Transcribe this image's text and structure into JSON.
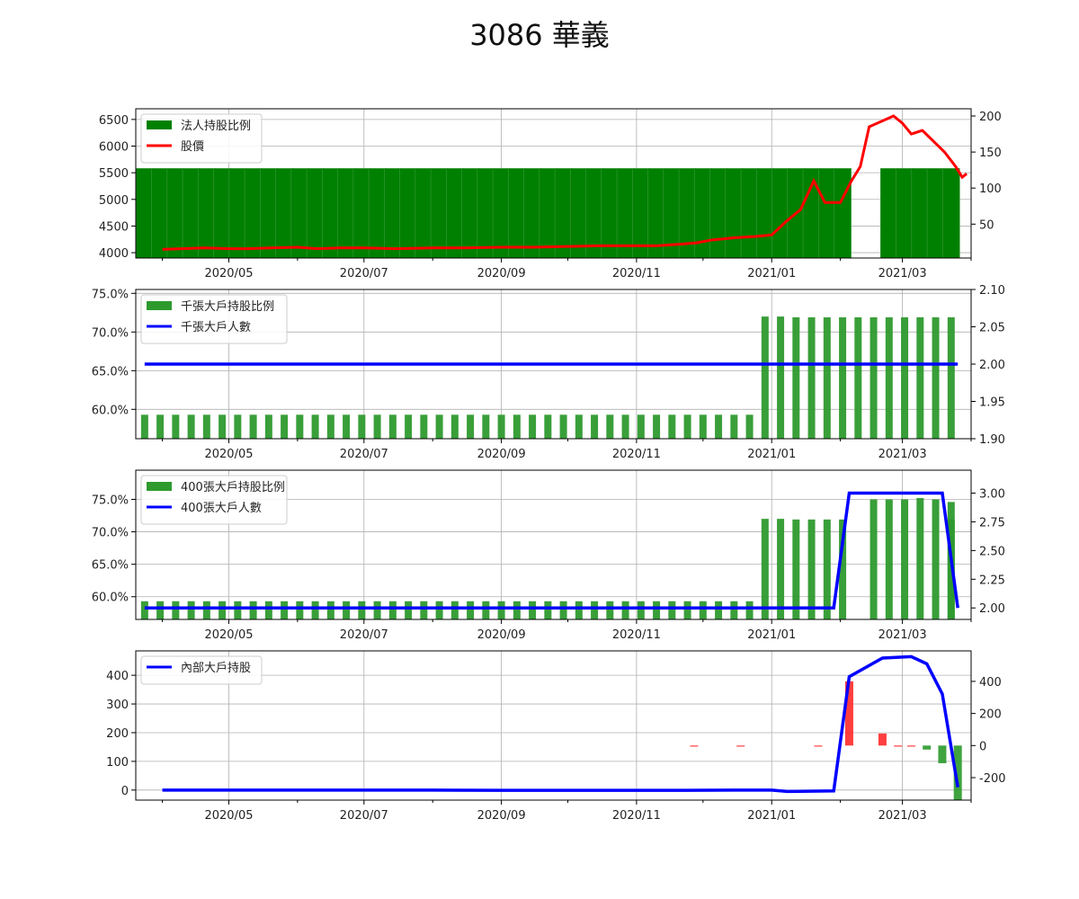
{
  "title": "3086 華義",
  "colors": {
    "bar_green": "#008000",
    "price_red": "#ff0000",
    "count_blue": "#0000ff",
    "neg_red": "#ff2a2a",
    "pos_green": "#2a9a2a"
  },
  "chart_data": [
    {
      "type": "bar",
      "legend": [
        "法人持股比例",
        "股價"
      ],
      "legend_position": "top-left",
      "grid": true,
      "x_range": [
        "2020-03-20",
        "2021-04-01"
      ],
      "x_ticks": [
        "2020/05",
        "2020/07",
        "2020/09",
        "2020/11",
        "2021/01",
        "2021/03"
      ],
      "ylim_left": [
        3900,
        6700
      ],
      "yticks_left": [
        "4000",
        "4500",
        "5000",
        "5500",
        "6000",
        "6500"
      ],
      "ylim_right": [
        3,
        210
      ],
      "yticks_right": [
        "50",
        "100",
        "150",
        "200"
      ],
      "bar_series": {
        "name": "法人持股比例",
        "value": 5580,
        "gaps": [
          [
            "2020-06-26",
            "2020-06-29"
          ],
          [
            "2020-09-30",
            "2020-10-05"
          ],
          [
            "2021-02-09",
            "2021-02-16"
          ]
        ],
        "start": "2020-03-24",
        "end": "2021-03-26"
      },
      "line_series": {
        "name": "股價",
        "points": [
          [
            "2020-04-01",
            15
          ],
          [
            "2020-04-10",
            16
          ],
          [
            "2020-04-20",
            17
          ],
          [
            "2020-05-01",
            16
          ],
          [
            "2020-05-10",
            16
          ],
          [
            "2020-05-20",
            17
          ],
          [
            "2020-06-01",
            18
          ],
          [
            "2020-06-10",
            16
          ],
          [
            "2020-06-20",
            17
          ],
          [
            "2020-07-01",
            17
          ],
          [
            "2020-07-15",
            16
          ],
          [
            "2020-08-01",
            17
          ],
          [
            "2020-08-15",
            17
          ],
          [
            "2020-09-01",
            18
          ],
          [
            "2020-09-15",
            18
          ],
          [
            "2020-10-01",
            19
          ],
          [
            "2020-10-15",
            20
          ],
          [
            "2020-11-01",
            20
          ],
          [
            "2020-11-10",
            20
          ],
          [
            "2020-11-20",
            22
          ],
          [
            "2020-11-28",
            24
          ],
          [
            "2020-12-05",
            28
          ],
          [
            "2020-12-15",
            31
          ],
          [
            "2020-12-25",
            33
          ],
          [
            "2021-01-01",
            35
          ],
          [
            "2021-01-08",
            55
          ],
          [
            "2021-01-14",
            70
          ],
          [
            "2021-01-20",
            110
          ],
          [
            "2021-01-25",
            80
          ],
          [
            "2021-02-01",
            80
          ],
          [
            "2021-02-06",
            110
          ],
          [
            "2021-02-10",
            130
          ],
          [
            "2021-02-14",
            185
          ],
          [
            "2021-02-25",
            200
          ],
          [
            "2021-03-01",
            190
          ],
          [
            "2021-03-05",
            175
          ],
          [
            "2021-03-10",
            180
          ],
          [
            "2021-03-15",
            165
          ],
          [
            "2021-03-20",
            150
          ],
          [
            "2021-03-25",
            130
          ],
          [
            "2021-03-28",
            115
          ],
          [
            "2021-03-30",
            120
          ]
        ]
      }
    },
    {
      "type": "bar",
      "legend": [
        "千張大戶持股比例",
        "千張大戶人數"
      ],
      "legend_position": "top-left",
      "grid": true,
      "ylim_left": [
        56.2,
        75.5
      ],
      "yticks_left": [
        "60.0%",
        "65.0%",
        "70.0%",
        "75.0%"
      ],
      "ylim_right": [
        1.9,
        2.1
      ],
      "yticks_right": [
        "1.90",
        "1.95",
        "2.00",
        "2.05",
        "2.10"
      ],
      "bar_values": [
        59.3,
        59.3,
        59.3,
        59.3,
        59.3,
        59.3,
        59.3,
        59.3,
        59.3,
        59.3,
        59.3,
        59.3,
        59.3,
        59.3,
        59.3,
        59.3,
        59.3,
        59.3,
        59.3,
        59.3,
        59.3,
        59.3,
        59.3,
        59.3,
        59.3,
        59.3,
        59.3,
        59.3,
        59.3,
        59.3,
        59.3,
        59.3,
        59.3,
        59.3,
        59.3,
        59.3,
        59.3,
        59.3,
        59.3,
        59.3,
        72.0,
        72.0,
        71.9,
        71.9,
        71.9,
        71.9,
        71.9,
        71.9,
        71.9,
        71.9,
        71.9,
        71.9,
        71.9,
        71.9
      ],
      "line_series": {
        "name": "千張大戶人數",
        "values": [
          2.0,
          2.0
        ]
      }
    },
    {
      "type": "bar",
      "legend": [
        "400張大戶持股比例",
        "400張大戶人數"
      ],
      "legend_position": "top-left",
      "grid": true,
      "ylim_left": [
        56.5,
        79.5
      ],
      "yticks_left": [
        "60.0%",
        "65.0%",
        "70.0%",
        "75.0%"
      ],
      "ylim_right": [
        1.9,
        3.2
      ],
      "yticks_right": [
        "2.00",
        "2.25",
        "2.50",
        "2.75",
        "3.00"
      ],
      "bar_values": [
        59.3,
        59.3,
        59.3,
        59.3,
        59.3,
        59.3,
        59.3,
        59.3,
        59.3,
        59.3,
        59.3,
        59.3,
        59.3,
        59.3,
        59.3,
        59.3,
        59.3,
        59.3,
        59.3,
        59.3,
        59.3,
        59.3,
        59.3,
        59.3,
        59.3,
        59.3,
        59.3,
        59.3,
        59.3,
        59.3,
        59.3,
        59.3,
        59.3,
        59.3,
        59.3,
        59.3,
        59.3,
        59.3,
        59.3,
        59.3,
        72.0,
        72.0,
        71.9,
        71.9,
        71.9,
        71.9,
        75.0,
        75.0,
        75.0,
        75.2,
        75.0,
        74.6,
        71.9
      ],
      "line_series": {
        "name": "400張大戶人數",
        "points": [
          [
            "2020-03-24",
            2.0
          ],
          [
            "2021-01-29",
            2.0
          ],
          [
            "2021-02-05",
            3.0
          ],
          [
            "2021-03-19",
            3.0
          ],
          [
            "2021-03-26",
            2.0
          ]
        ]
      }
    },
    {
      "type": "bar",
      "legend": [
        "內部大戶持股"
      ],
      "legend_position": "top-left",
      "grid": true,
      "ylim_left": [
        -35,
        485
      ],
      "yticks_left": [
        "0",
        "100",
        "200",
        "300",
        "400"
      ],
      "ylim_right": [
        -340,
        590
      ],
      "yticks_right": [
        "-200",
        "0",
        "200",
        "400"
      ],
      "bar_values_right": [
        [
          "2020-11-27",
          -2
        ],
        [
          "2020-12-18",
          -2
        ],
        [
          "2021-01-22",
          -2
        ],
        [
          "2021-02-05",
          400
        ],
        [
          "2021-02-20",
          75
        ],
        [
          "2021-02-27",
          -3
        ],
        [
          "2021-03-05",
          -3
        ],
        [
          "2021-03-12",
          -25
        ],
        [
          "2021-03-19",
          -110
        ],
        [
          "2021-03-26",
          -340
        ]
      ],
      "line_series": {
        "name": "內部大戶持股",
        "points": [
          [
            "2020-04-01",
            0
          ],
          [
            "2020-08-01",
            0
          ],
          [
            "2020-09-01",
            -1
          ],
          [
            "2020-11-01",
            -1
          ],
          [
            "2020-11-20",
            -1
          ],
          [
            "2020-12-15",
            0
          ],
          [
            "2021-01-01",
            0
          ],
          [
            "2021-01-08",
            -5
          ],
          [
            "2021-01-29",
            -3
          ],
          [
            "2021-02-05",
            395
          ],
          [
            "2021-02-20",
            460
          ],
          [
            "2021-03-05",
            465
          ],
          [
            "2021-03-12",
            440
          ],
          [
            "2021-03-19",
            335
          ],
          [
            "2021-03-26",
            10
          ]
        ]
      }
    }
  ]
}
